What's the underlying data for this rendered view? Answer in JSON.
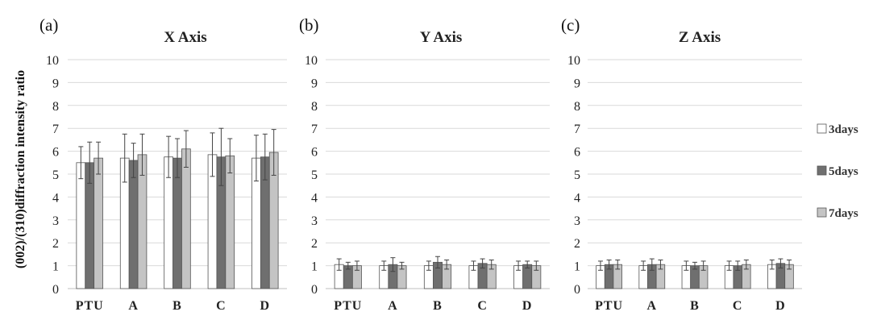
{
  "ylabel": "(002)/(310)diffraction intensity ratio",
  "legend": [
    {
      "name": "3days",
      "color": "#ffffff"
    },
    {
      "name": "5days",
      "color": "#6f6f6f"
    },
    {
      "name": "7days",
      "color": "#c4c4c4"
    }
  ],
  "chart_data": [
    {
      "type": "bar",
      "panel_label": "(a)",
      "title": "X Axis",
      "categories": [
        "PTU",
        "A",
        "B",
        "C",
        "D"
      ],
      "ylim": [
        0,
        10
      ],
      "yticks": [
        "0",
        "1",
        "2",
        "3",
        "4",
        "5",
        "6",
        "7",
        "8",
        "9",
        "10"
      ],
      "grid": true,
      "series": [
        {
          "name": "3days",
          "values": [
            5.5,
            5.7,
            5.75,
            5.85,
            5.7
          ],
          "errors": [
            0.7,
            1.05,
            0.9,
            0.95,
            1.0
          ]
        },
        {
          "name": "5days",
          "values": [
            5.5,
            5.6,
            5.7,
            5.75,
            5.75
          ],
          "errors": [
            0.9,
            0.75,
            0.85,
            1.25,
            1.0
          ]
        },
        {
          "name": "7days",
          "values": [
            5.7,
            5.85,
            6.1,
            5.8,
            5.95
          ],
          "errors": [
            0.7,
            0.9,
            0.8,
            0.75,
            1.0
          ]
        }
      ]
    },
    {
      "type": "bar",
      "panel_label": "(b)",
      "title": "Y Axis",
      "categories": [
        "PTU",
        "A",
        "B",
        "C",
        "D"
      ],
      "ylim": [
        0,
        10
      ],
      "yticks": [
        "0",
        "1",
        "2",
        "3",
        "4",
        "5",
        "6",
        "7",
        "8",
        "9",
        "10"
      ],
      "grid": true,
      "series": [
        {
          "name": "3days",
          "values": [
            1.05,
            1.0,
            1.0,
            1.0,
            1.0
          ],
          "errors": [
            0.25,
            0.2,
            0.2,
            0.2,
            0.2
          ]
        },
        {
          "name": "5days",
          "values": [
            1.0,
            1.05,
            1.15,
            1.1,
            1.05
          ],
          "errors": [
            0.15,
            0.3,
            0.25,
            0.2,
            0.15
          ]
        },
        {
          "name": "7days",
          "values": [
            1.0,
            1.0,
            1.05,
            1.05,
            1.0
          ],
          "errors": [
            0.2,
            0.15,
            0.2,
            0.2,
            0.2
          ]
        }
      ]
    },
    {
      "type": "bar",
      "panel_label": "(c)",
      "title": "Z Axis",
      "categories": [
        "PTU",
        "A",
        "B",
        "C",
        "D"
      ],
      "ylim": [
        0,
        10
      ],
      "yticks": [
        "0",
        "1",
        "2",
        "3",
        "4",
        "5",
        "6",
        "7",
        "8",
        "9",
        "10"
      ],
      "grid": true,
      "series": [
        {
          "name": "3days",
          "values": [
            1.0,
            1.0,
            1.0,
            1.0,
            1.05
          ],
          "errors": [
            0.2,
            0.2,
            0.2,
            0.2,
            0.2
          ]
        },
        {
          "name": "5days",
          "values": [
            1.05,
            1.05,
            1.0,
            1.0,
            1.1
          ],
          "errors": [
            0.2,
            0.25,
            0.15,
            0.2,
            0.2
          ]
        },
        {
          "name": "7days",
          "values": [
            1.05,
            1.05,
            1.0,
            1.05,
            1.05
          ],
          "errors": [
            0.2,
            0.2,
            0.2,
            0.2,
            0.2
          ]
        }
      ]
    }
  ]
}
